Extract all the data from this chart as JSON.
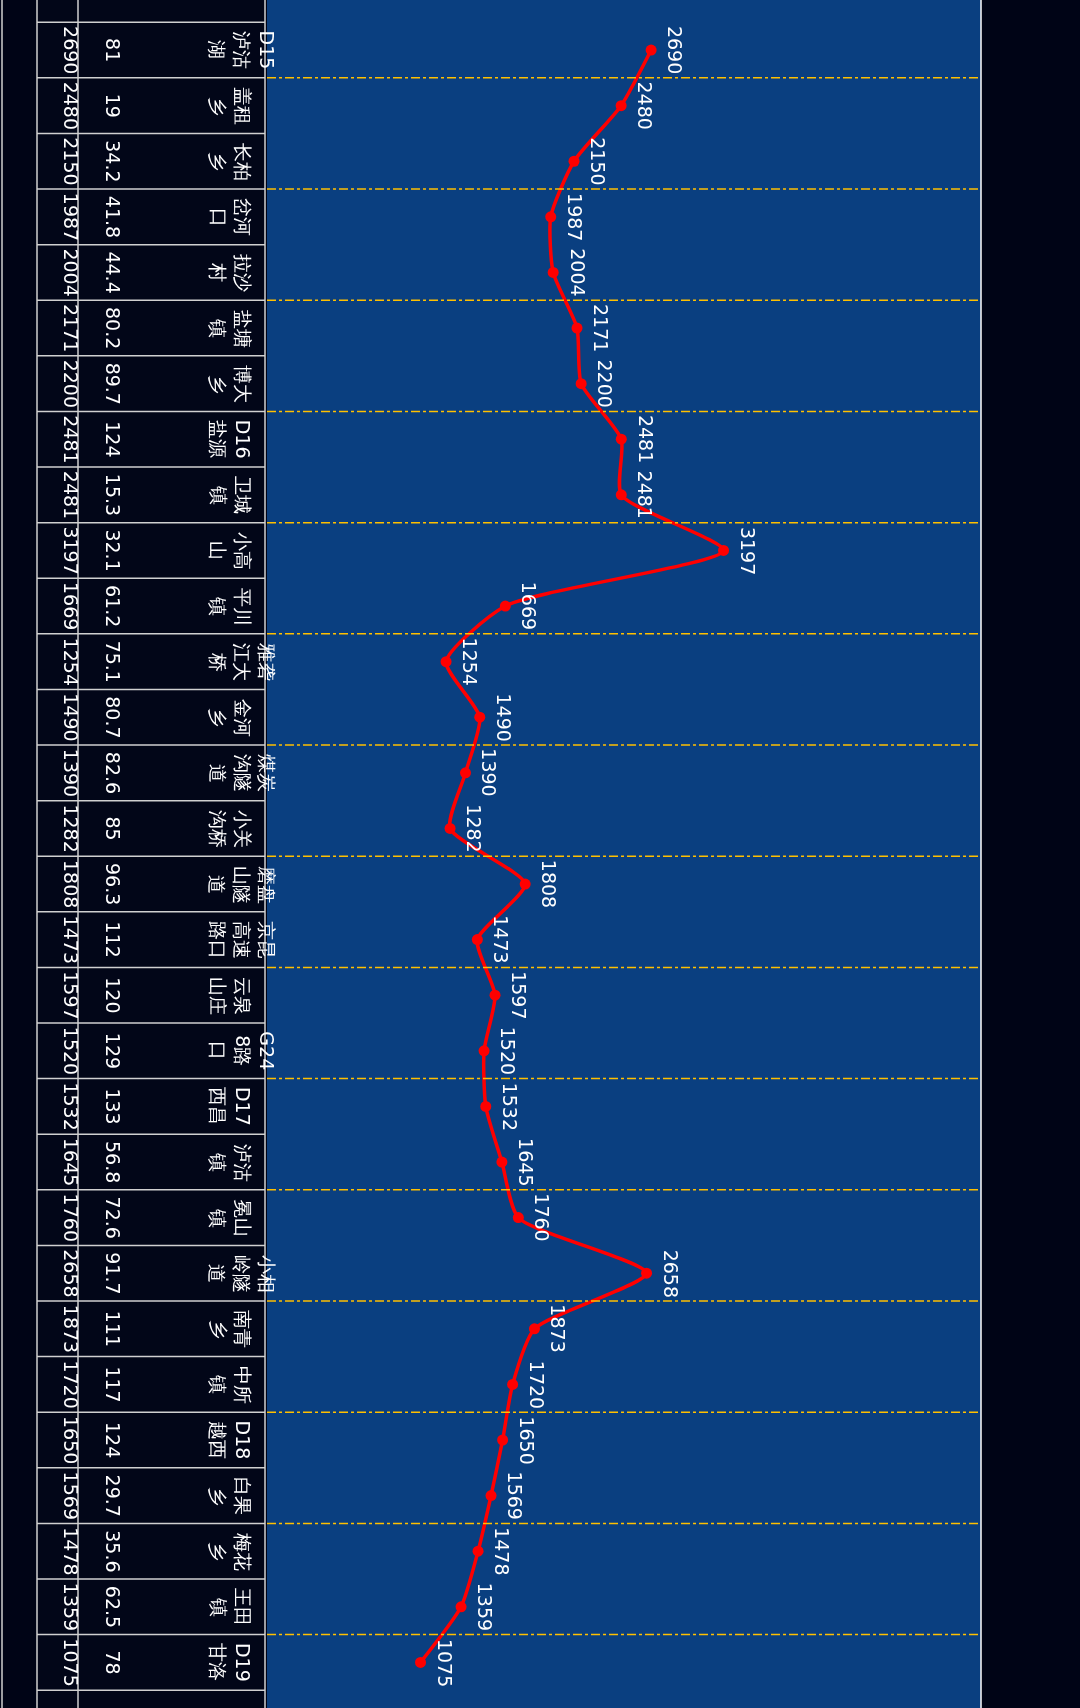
{
  "chart_data": {
    "type": "line",
    "orientation": "horizontal",
    "categories": [
      "D15 泸沽湖",
      "盖租乡",
      "长柏乡",
      "岔河口",
      "拉沙村",
      "盐塘镇",
      "博大乡",
      "D16 盐源",
      "卫城镇",
      "小高山",
      "平川镇",
      "雅砻江大桥",
      "金河乡",
      "煤炭沟隧道",
      "小关沟桥",
      "磨盘山隧道",
      "京昆高速路口",
      "云泉山庄",
      "G24 8路口",
      "D17 西昌",
      "泸沽镇",
      "冕山镇",
      "小相岭隧道",
      "南青乡",
      "中所镇",
      "D18 越西",
      "白果乡",
      "梅花乡",
      "王田镇",
      "D19 甘洛"
    ],
    "series": [
      {
        "type": "line",
        "color": "#ff0000",
        "values": [
          2690,
          2480,
          2150,
          1987,
          2004,
          2171,
          2200,
          2481,
          2481,
          3197,
          1669,
          1254,
          1490,
          1390,
          1282,
          1808,
          1473,
          1597,
          1520,
          1532,
          1645,
          1760,
          2658,
          1873,
          1720,
          1650,
          1569,
          1478,
          1359,
          1075
        ]
      }
    ],
    "annotations": [
      "2690",
      "2480",
      "2150",
      "1987",
      "2004",
      "2171",
      "2200",
      "2481",
      "2481",
      "3197",
      "1669",
      "1254",
      "1490",
      "1390",
      "1282",
      "1808",
      "1473",
      "1597",
      "1520",
      "1532",
      "1645",
      "1760",
      "2658",
      "1873",
      "1720",
      "1650",
      "1569",
      "1478",
      "1359",
      "1075",
      "81",
      "19",
      "34.2",
      "41.8",
      "44.4",
      "80.2",
      "89.7",
      "124",
      "15.3",
      "32.1",
      "61.2",
      "75.1",
      "80.7",
      "82.6",
      "85",
      "96.3",
      "112",
      "120",
      "129",
      "133",
      "56.8",
      "72.6",
      "91.7",
      "111",
      "117",
      "124",
      "29.7",
      "35.6",
      "62.5",
      "78"
    ],
    "xlim": [
      0,
      5000
    ],
    "data_labels": true,
    "marker": "circle",
    "line_style": "solid",
    "grid": "y",
    "tick_labels": false
  }
}
